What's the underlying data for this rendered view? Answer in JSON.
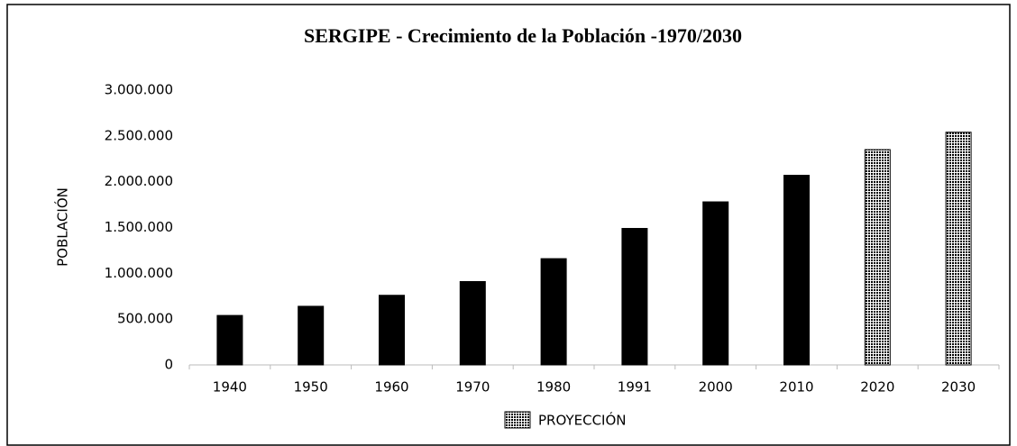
{
  "chart_data": {
    "type": "bar",
    "title": "SERGIPE - Crecimiento de la Población -1970/2030",
    "y_label": "POBLACIÓN",
    "categories": [
      "1940",
      "1950",
      "1960",
      "1970",
      "1980",
      "1991",
      "2000",
      "2010",
      "2020",
      "2030"
    ],
    "series": [
      {
        "color": "#000000",
        "pattern": "solid",
        "values": [
          540000,
          640000,
          760000,
          910000,
          1160000,
          1490000,
          1780000,
          2070000,
          null,
          null
        ]
      },
      {
        "name": "PROYECCIÓN",
        "color": "#000000",
        "pattern": "hatch",
        "values": [
          null,
          null,
          null,
          null,
          null,
          null,
          null,
          null,
          2350000,
          2540000
        ]
      }
    ],
    "ylim": [
      0,
      3000000
    ],
    "yticks": [
      0,
      {
        "value": 500000,
        "label": "500.000"
      },
      {
        "value": 1000000,
        "label": "1.000.000"
      },
      {
        "value": 1500000,
        "label": "1.500.000"
      },
      {
        "value": 2000000,
        "label": "2.000.000"
      },
      {
        "value": 2500000,
        "label": "2.500.000"
      },
      {
        "value": 3000000,
        "label": "3.000.000"
      }
    ],
    "grid": false,
    "legend": "bottom"
  }
}
